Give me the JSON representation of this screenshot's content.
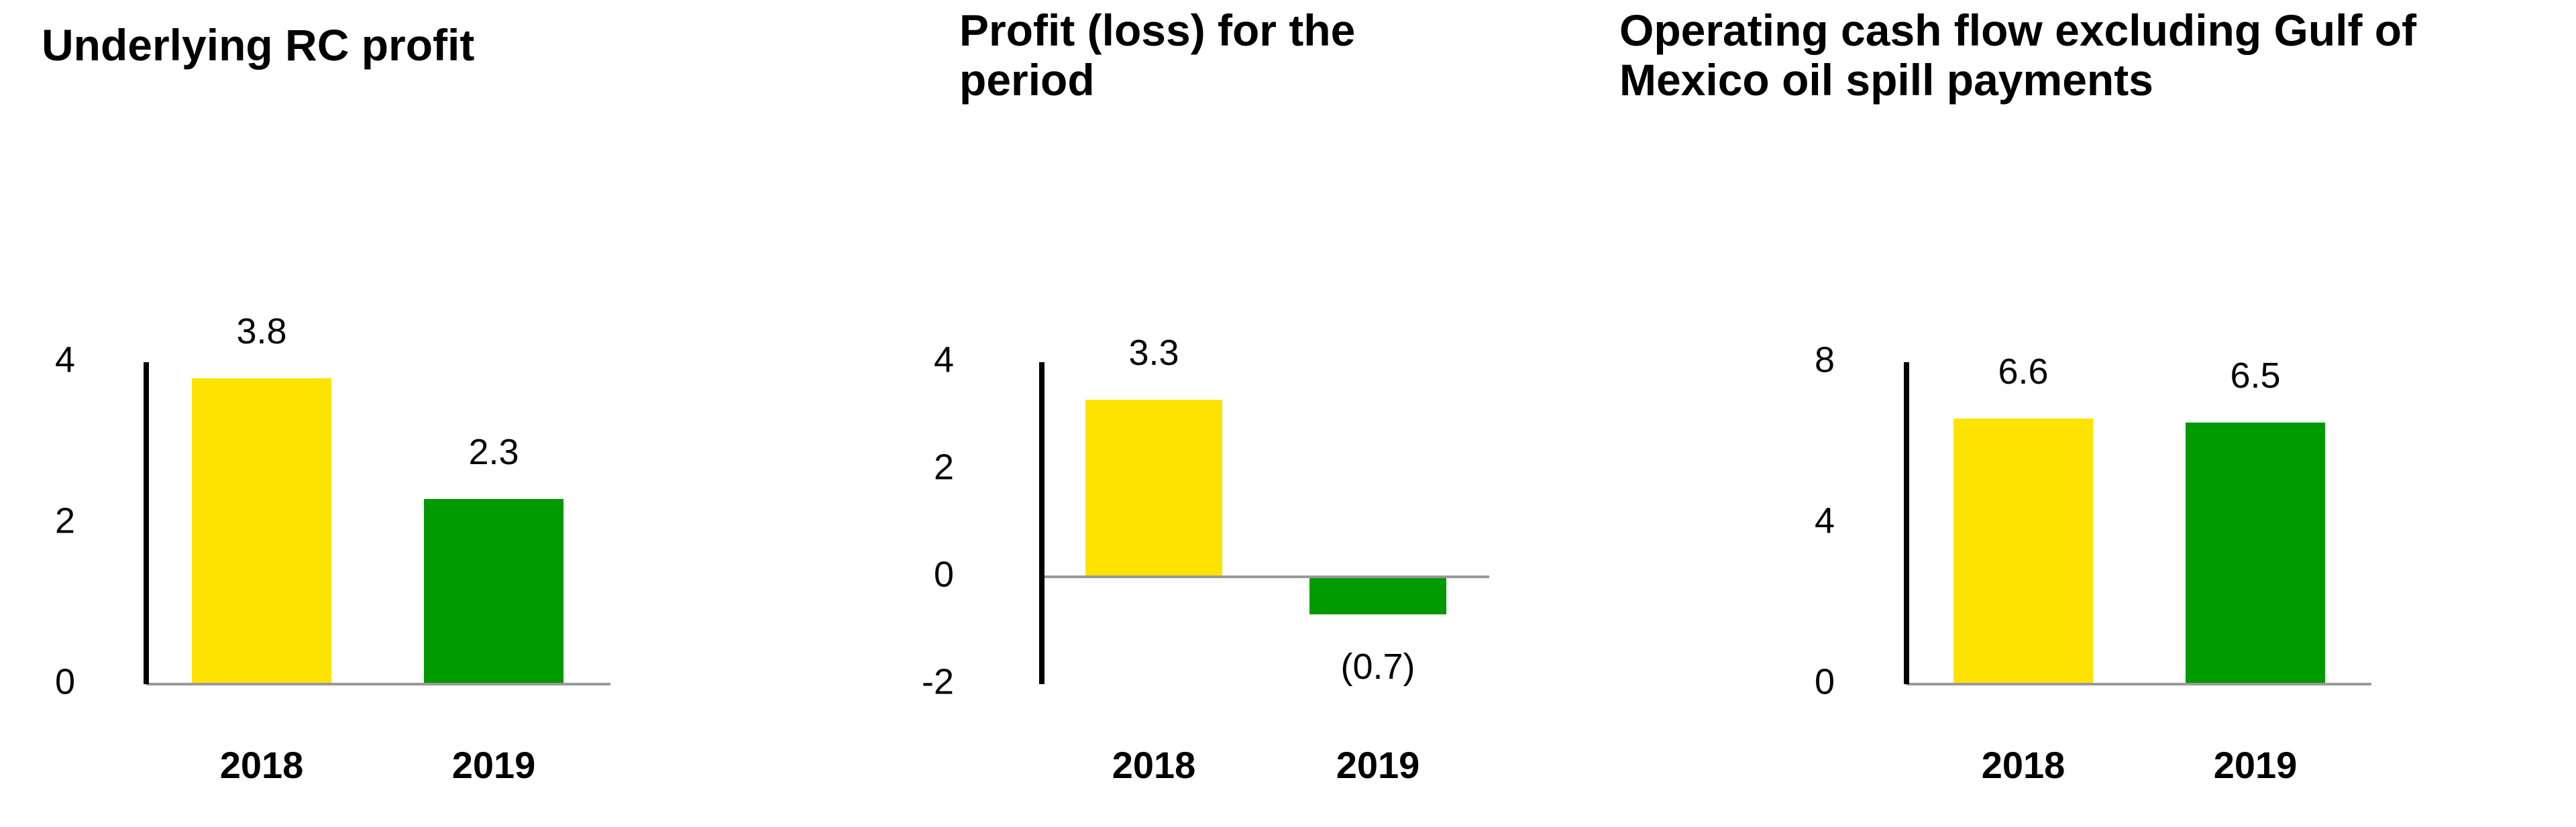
{
  "colors": {
    "series_2018": "#FFE300",
    "series_2019": "#009900",
    "axis": "#000000",
    "baseline": "#999999",
    "text": "#000000"
  },
  "chart_data": [
    {
      "type": "bar",
      "title": "Underlying RC profit",
      "categories": [
        "2018",
        "2019"
      ],
      "values": [
        3.8,
        2.3
      ],
      "value_labels": [
        "3.8",
        "2.3"
      ],
      "yticks": [
        0,
        2,
        4
      ],
      "ylim": [
        0,
        4
      ],
      "xlabel": "",
      "ylabel": "",
      "grid": false
    },
    {
      "type": "bar",
      "title": "Profit (loss) for the period",
      "categories": [
        "2018",
        "2019"
      ],
      "values": [
        3.3,
        -0.7
      ],
      "value_labels": [
        "3.3",
        "(0.7)"
      ],
      "yticks": [
        -2,
        0,
        2,
        4
      ],
      "ylim": [
        -2,
        4
      ],
      "xlabel": "",
      "ylabel": "",
      "grid": false
    },
    {
      "type": "bar",
      "title": "Operating cash flow excluding Gulf of Mexico oil spill payments",
      "categories": [
        "2018",
        "2019"
      ],
      "values": [
        6.6,
        6.5
      ],
      "value_labels": [
        "6.6",
        "6.5"
      ],
      "yticks": [
        0,
        4,
        8
      ],
      "ylim": [
        0,
        8
      ],
      "xlabel": "",
      "ylabel": "",
      "grid": false
    }
  ]
}
